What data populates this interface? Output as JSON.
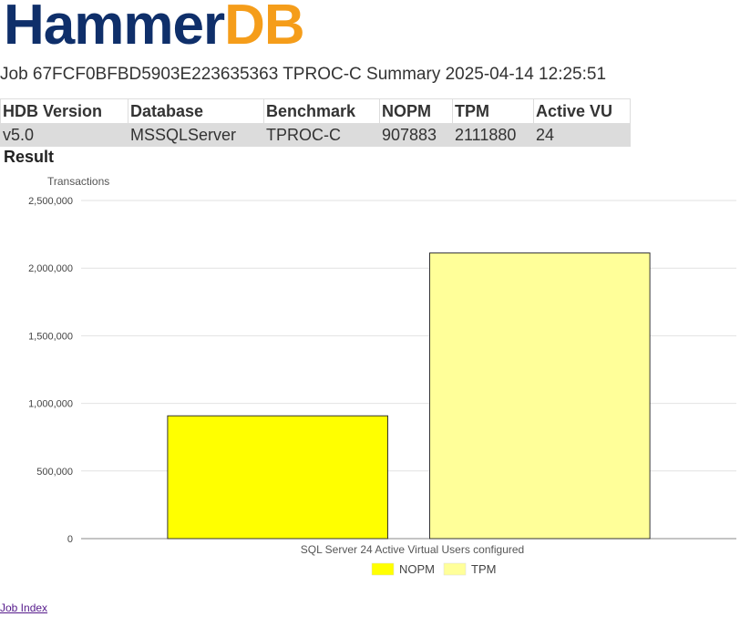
{
  "logo": {
    "part1": "Hammer",
    "part2": "DB"
  },
  "job_title": "Job 67FCF0BFBD5903E223635363 TPROC-C Summary 2025-04-14 12:25:51",
  "summary_table": {
    "headers": [
      "HDB Version",
      "Database",
      "Benchmark",
      "NOPM",
      "TPM",
      "Active VU"
    ],
    "row": [
      "v5.0",
      "MSSQLServer",
      "TPROC-C",
      "907883",
      "2111880",
      "24"
    ]
  },
  "result_heading": "Result",
  "chart_data": {
    "type": "bar",
    "ylabel": "Transactions",
    "xlabel": "SQL Server 24 Active Virtual Users configured",
    "categories": [
      "SQL Server 24 Active Virtual Users configured"
    ],
    "series": [
      {
        "name": "NOPM",
        "values": [
          907883
        ],
        "color": "#ffff00"
      },
      {
        "name": "TPM",
        "values": [
          2111880
        ],
        "color": "#ffff99"
      }
    ],
    "ylim": [
      0,
      2500000
    ],
    "yticks": [
      "0",
      "500,000",
      "1,000,000",
      "1,500,000",
      "2,000,000",
      "2,500,000"
    ],
    "grid": true,
    "legend": "bottom"
  },
  "footer": {
    "job_index_link": "Job Index"
  }
}
